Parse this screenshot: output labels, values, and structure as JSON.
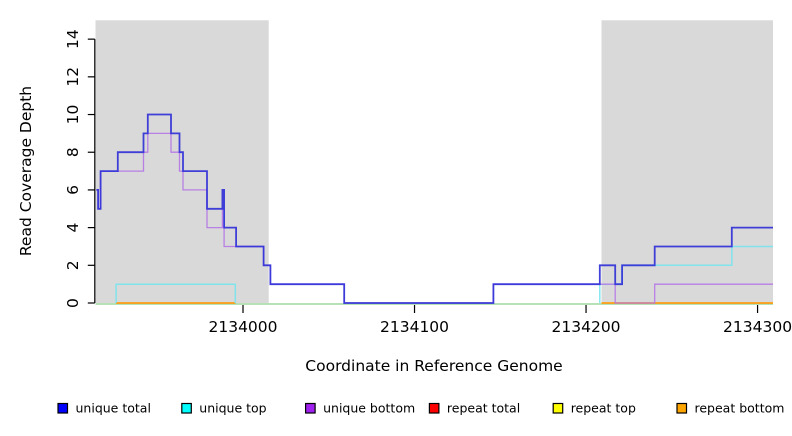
{
  "chart_data": {
    "type": "line",
    "title": "",
    "xlabel": "Coordinate in Reference Genome",
    "ylabel": "Read Coverage Depth",
    "xlim": [
      2133914,
      2134309
    ],
    "ylim": [
      0,
      15
    ],
    "x_ticks": [
      2134000,
      2134100,
      2134200,
      2134300
    ],
    "y_ticks": [
      0,
      2,
      4,
      6,
      8,
      10,
      12,
      14
    ],
    "grid": false,
    "legend_position": "bottom",
    "band_color": "#d9d9d9",
    "masked_regions": [
      [
        2133914,
        2134015
      ],
      [
        2134209,
        2134309
      ]
    ],
    "baseline": {
      "name": "zero-baseline",
      "color": "#8ccd8c",
      "x": [
        2133914,
        2134309
      ],
      "value": 0
    },
    "series": [
      {
        "name": "repeat total",
        "color": "#e02020",
        "line_width": 1.3,
        "paths": [
          [
            [
              2133926,
              0
            ],
            [
              2133995.5,
              0
            ]
          ],
          [
            [
              2134209,
              0
            ],
            [
              2134309,
              0
            ]
          ]
        ]
      },
      {
        "name": "repeat top",
        "color": "#f5e626",
        "line_width": 1.3,
        "paths": [
          [
            [
              2133926,
              0
            ],
            [
              2133995.5,
              0
            ]
          ],
          [
            [
              2134209,
              0
            ],
            [
              2134309,
              0
            ]
          ]
        ]
      },
      {
        "name": "repeat bottom",
        "color": "#ff9e1b",
        "line_width": 1.8,
        "paths": [
          [
            [
              2133926,
              0
            ],
            [
              2133995.5,
              0
            ]
          ],
          [
            [
              2134209,
              0
            ],
            [
              2134309,
              0
            ]
          ]
        ]
      },
      {
        "name": "unique top",
        "color": "#7ae4ee",
        "line_width": 1.5,
        "paths": [
          [
            [
              2133926,
              0
            ],
            [
              2133926,
              1
            ],
            [
              2133995.5,
              1
            ],
            [
              2133995.5,
              0
            ]
          ],
          [
            [
              2134208,
              0
            ],
            [
              2134208,
              1
            ],
            [
              2134221,
              2
            ],
            [
              2134285,
              3
            ],
            [
              2134309,
              3
            ]
          ]
        ]
      },
      {
        "name": "unique bottom",
        "color": "#b578e6",
        "line_width": 1.3,
        "paths": [
          [
            [
              2133914.5,
              6
            ],
            [
              2133915.5,
              5
            ],
            [
              2133917,
              7
            ],
            [
              2133942,
              8
            ],
            [
              2133944.5,
              9
            ],
            [
              2133958,
              8
            ],
            [
              2133963,
              7
            ],
            [
              2133965,
              6
            ],
            [
              2133979,
              4
            ],
            [
              2133988,
              5
            ],
            [
              2133989,
              3
            ],
            [
              2134012,
              2
            ],
            [
              2134016,
              1
            ],
            [
              2134059,
              0
            ],
            [
              2134146,
              1
            ],
            [
              2134217,
              0
            ],
            [
              2134240,
              1
            ],
            [
              2134309,
              1
            ]
          ]
        ]
      },
      {
        "name": "unique total",
        "color": "#3232d8",
        "line_width": 1.8,
        "paths": [
          [
            [
              2133914.5,
              6
            ],
            [
              2133915.5,
              5
            ],
            [
              2133917,
              7
            ],
            [
              2133927,
              8
            ],
            [
              2133942,
              9
            ],
            [
              2133944.5,
              10
            ],
            [
              2133958,
              9
            ],
            [
              2133963,
              8
            ],
            [
              2133965,
              7
            ],
            [
              2133979,
              5
            ],
            [
              2133988,
              6
            ],
            [
              2133989,
              4
            ],
            [
              2133996,
              3
            ],
            [
              2134012,
              2
            ],
            [
              2134016,
              1
            ],
            [
              2134059,
              0
            ],
            [
              2134146,
              1
            ],
            [
              2134208,
              2
            ],
            [
              2134217,
              1
            ],
            [
              2134221,
              2
            ],
            [
              2134240,
              3
            ],
            [
              2134285,
              4
            ],
            [
              2134309,
              4
            ]
          ]
        ]
      }
    ],
    "legend": [
      {
        "label": "unique total",
        "color": "#0000ff"
      },
      {
        "label": "unique top",
        "color": "#00ffff"
      },
      {
        "label": "unique bottom",
        "color": "#a020f0"
      },
      {
        "label": "repeat total",
        "color": "#ff0000"
      },
      {
        "label": "repeat top",
        "color": "#ffff00"
      },
      {
        "label": "repeat bottom",
        "color": "#ffa500"
      }
    ]
  }
}
